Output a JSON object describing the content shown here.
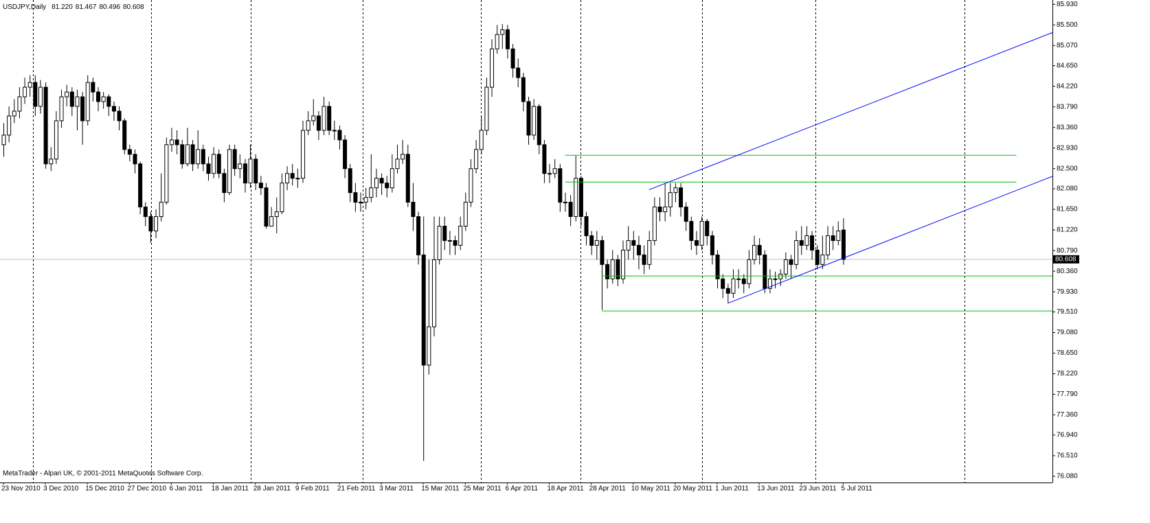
{
  "chart_data": {
    "type": "candlestick",
    "symbol": "USDJPY,Daily",
    "header_values": [
      "81.220",
      "81.467",
      "80.496",
      "80.608"
    ],
    "footer": "MetaTrader - Alpari UK, © 2001-2011 MetaQuotes Software Corp.",
    "up_color": "#ffffff",
    "down_color": "#000000",
    "ylim": [
      75.95,
      86.02
    ],
    "yticks": [
      {
        "value": 85.93,
        "label": "85.930"
      },
      {
        "value": 85.5,
        "label": "85.500"
      },
      {
        "value": 85.07,
        "label": "85.070"
      },
      {
        "value": 84.65,
        "label": "84.650"
      },
      {
        "value": 84.22,
        "label": "84.220"
      },
      {
        "value": 83.79,
        "label": "83.790"
      },
      {
        "value": 83.36,
        "label": "83.360"
      },
      {
        "value": 82.93,
        "label": "82.930"
      },
      {
        "value": 82.5,
        "label": "82.500"
      },
      {
        "value": 82.08,
        "label": "82.080"
      },
      {
        "value": 81.65,
        "label": "81.650"
      },
      {
        "value": 81.22,
        "label": "81.220"
      },
      {
        "value": 80.79,
        "label": "80.790"
      },
      {
        "value": 80.36,
        "label": "80.360"
      },
      {
        "value": 79.93,
        "label": "79.930"
      },
      {
        "value": 79.51,
        "label": "79.510"
      },
      {
        "value": 79.08,
        "label": "79.080"
      },
      {
        "value": 78.65,
        "label": "78.650"
      },
      {
        "value": 78.22,
        "label": "78.220"
      },
      {
        "value": 77.79,
        "label": "77.790"
      },
      {
        "value": 77.36,
        "label": "77.360"
      },
      {
        "value": 76.94,
        "label": "76.940"
      },
      {
        "value": 76.51,
        "label": "76.510"
      },
      {
        "value": 76.08,
        "label": "76.080"
      }
    ],
    "last_price": 80.608,
    "categories": [
      "23 Nov 2010",
      null,
      null,
      null,
      null,
      null,
      null,
      null,
      "3 Dec 2010",
      null,
      null,
      null,
      null,
      null,
      null,
      null,
      "15 Dec 2010",
      null,
      null,
      null,
      null,
      null,
      null,
      null,
      "27 Dec 2010",
      null,
      null,
      null,
      null,
      null,
      null,
      null,
      "6 Jan 2011",
      null,
      null,
      null,
      null,
      null,
      null,
      null,
      "18 Jan 2011",
      null,
      null,
      null,
      null,
      null,
      null,
      null,
      "28 Jan 2011",
      null,
      null,
      null,
      null,
      null,
      null,
      null,
      "9 Feb 2011",
      null,
      null,
      null,
      null,
      null,
      null,
      null,
      "21 Feb 2011",
      null,
      null,
      null,
      null,
      null,
      null,
      null,
      "3 Mar 2011",
      null,
      null,
      null,
      null,
      null,
      null,
      null,
      "15 Mar 2011",
      null,
      null,
      null,
      null,
      null,
      null,
      null,
      "25 Mar 2011",
      null,
      null,
      null,
      null,
      null,
      null,
      null,
      "6 Apr 2011",
      null,
      null,
      null,
      null,
      null,
      null,
      null,
      "18 Apr 2011",
      null,
      null,
      null,
      null,
      null,
      null,
      null,
      "28 Apr 2011",
      null,
      null,
      null,
      null,
      null,
      null,
      null,
      "10 May 2011",
      null,
      null,
      null,
      null,
      null,
      null,
      null,
      "20 May 2011",
      null,
      null,
      null,
      null,
      null,
      null,
      null,
      "1 Jun 2011",
      null,
      null,
      null,
      null,
      null,
      null,
      null,
      "13 Jun 2011",
      null,
      null,
      null,
      null,
      null,
      null,
      null,
      "23 Jun 2011",
      null,
      null,
      null,
      null,
      null,
      null,
      null,
      "5 Jul 2011"
    ],
    "candles": [
      [
        83.0,
        83.45,
        82.75,
        83.2
      ],
      [
        83.2,
        83.8,
        83.05,
        83.6
      ],
      [
        83.6,
        83.95,
        83.45,
        83.7
      ],
      [
        83.7,
        84.2,
        83.55,
        84.0
      ],
      [
        84.0,
        84.4,
        83.85,
        84.2
      ],
      [
        84.2,
        84.45,
        84.0,
        84.3
      ],
      [
        84.3,
        84.45,
        83.6,
        83.8
      ],
      [
        83.8,
        84.35,
        83.65,
        84.2
      ],
      [
        84.2,
        84.3,
        82.5,
        82.6
      ],
      [
        82.6,
        82.95,
        82.45,
        82.7
      ],
      [
        82.7,
        83.7,
        82.6,
        83.5
      ],
      [
        83.5,
        84.15,
        83.35,
        84.0
      ],
      [
        84.0,
        84.25,
        83.8,
        84.1
      ],
      [
        84.1,
        84.2,
        83.6,
        83.8
      ],
      [
        83.8,
        84.15,
        83.3,
        84.0
      ],
      [
        84.0,
        84.1,
        83.0,
        83.5
      ],
      [
        83.5,
        84.45,
        83.4,
        84.3
      ],
      [
        84.3,
        84.4,
        83.9,
        84.1
      ],
      [
        84.1,
        84.2,
        83.7,
        83.9
      ],
      [
        83.9,
        84.1,
        83.75,
        84.0
      ],
      [
        84.0,
        84.05,
        83.6,
        83.8
      ],
      [
        83.8,
        83.9,
        83.5,
        83.7
      ],
      [
        83.7,
        83.8,
        83.3,
        83.5
      ],
      [
        83.5,
        83.55,
        82.8,
        82.9
      ],
      [
        82.9,
        83.0,
        82.65,
        82.8
      ],
      [
        82.8,
        82.9,
        82.4,
        82.6
      ],
      [
        82.6,
        82.65,
        81.55,
        81.7
      ],
      [
        81.7,
        81.8,
        81.3,
        81.5
      ],
      [
        81.5,
        81.6,
        80.95,
        81.2
      ],
      [
        81.2,
        81.65,
        81.05,
        81.5
      ],
      [
        81.5,
        82.4,
        81.4,
        81.8
      ],
      [
        81.8,
        83.15,
        81.75,
        83.0
      ],
      [
        83.0,
        83.35,
        82.85,
        83.1
      ],
      [
        83.1,
        83.3,
        82.8,
        83.0
      ],
      [
        83.0,
        83.1,
        82.5,
        82.6
      ],
      [
        82.6,
        83.35,
        82.55,
        83.0
      ],
      [
        83.0,
        83.1,
        82.45,
        82.6
      ],
      [
        82.6,
        83.3,
        82.5,
        82.9
      ],
      [
        82.9,
        83.0,
        82.45,
        82.6
      ],
      [
        82.6,
        82.75,
        82.25,
        82.4
      ],
      [
        82.4,
        82.95,
        82.3,
        82.8
      ],
      [
        82.8,
        82.9,
        82.3,
        82.4
      ],
      [
        82.4,
        82.5,
        81.8,
        82.0
      ],
      [
        82.0,
        83.0,
        81.95,
        82.9
      ],
      [
        82.9,
        83.0,
        82.35,
        82.5
      ],
      [
        82.5,
        82.8,
        82.3,
        82.6
      ],
      [
        82.6,
        82.7,
        82.0,
        82.2
      ],
      [
        82.2,
        83.0,
        82.1,
        82.7
      ],
      [
        82.7,
        82.8,
        82.05,
        82.2
      ],
      [
        82.2,
        82.35,
        81.95,
        82.1
      ],
      [
        82.1,
        82.2,
        81.25,
        81.3
      ],
      [
        81.3,
        81.7,
        81.3,
        81.5
      ],
      [
        81.5,
        81.9,
        81.15,
        81.6
      ],
      [
        81.6,
        82.4,
        81.55,
        82.2
      ],
      [
        82.2,
        82.55,
        82.05,
        82.4
      ],
      [
        82.4,
        82.6,
        82.15,
        82.3
      ],
      [
        82.3,
        82.5,
        82.1,
        82.3
      ],
      [
        82.3,
        83.5,
        82.2,
        83.3
      ],
      [
        83.3,
        83.7,
        83.2,
        83.5
      ],
      [
        83.5,
        83.95,
        83.4,
        83.6
      ],
      [
        83.6,
        83.7,
        83.1,
        83.3
      ],
      [
        83.3,
        84.0,
        83.2,
        83.8
      ],
      [
        83.8,
        83.9,
        83.2,
        83.3
      ],
      [
        83.3,
        83.5,
        83.1,
        83.3
      ],
      [
        83.3,
        83.4,
        82.9,
        83.1
      ],
      [
        83.1,
        83.2,
        82.3,
        82.5
      ],
      [
        82.5,
        82.6,
        81.8,
        82.0
      ],
      [
        82.0,
        82.2,
        81.6,
        81.8
      ],
      [
        81.8,
        82.0,
        81.6,
        81.8
      ],
      [
        81.8,
        82.1,
        81.65,
        81.9
      ],
      [
        81.9,
        82.8,
        81.8,
        82.1
      ],
      [
        82.1,
        82.5,
        81.9,
        82.3
      ],
      [
        82.3,
        82.4,
        81.95,
        82.2
      ],
      [
        82.2,
        82.35,
        81.9,
        82.1
      ],
      [
        82.1,
        82.8,
        82.0,
        82.5
      ],
      [
        82.5,
        83.0,
        82.4,
        82.7
      ],
      [
        82.7,
        83.1,
        82.6,
        82.8
      ],
      [
        82.8,
        83.0,
        81.7,
        81.8
      ],
      [
        81.8,
        82.2,
        81.2,
        81.5
      ],
      [
        81.5,
        81.6,
        80.5,
        80.7
      ],
      [
        80.7,
        81.5,
        76.4,
        78.4
      ],
      [
        78.4,
        80.6,
        78.2,
        79.2
      ],
      [
        79.2,
        81.5,
        79.0,
        80.6
      ],
      [
        80.6,
        81.5,
        80.5,
        81.3
      ],
      [
        81.3,
        81.5,
        80.8,
        81.0
      ],
      [
        81.0,
        81.2,
        80.7,
        81.0
      ],
      [
        81.0,
        81.1,
        80.7,
        80.9
      ],
      [
        80.9,
        81.5,
        80.8,
        81.3
      ],
      [
        81.3,
        82.0,
        81.2,
        81.8
      ],
      [
        81.8,
        82.7,
        81.7,
        82.5
      ],
      [
        82.5,
        83.1,
        82.4,
        82.9
      ],
      [
        82.9,
        83.6,
        82.8,
        83.3
      ],
      [
        83.3,
        84.4,
        83.2,
        84.2
      ],
      [
        84.2,
        85.2,
        84.0,
        85.0
      ],
      [
        85.0,
        85.5,
        84.9,
        85.3
      ],
      [
        85.3,
        85.52,
        85.0,
        85.4
      ],
      [
        85.4,
        85.5,
        84.8,
        85.0
      ],
      [
        85.0,
        85.1,
        84.4,
        84.6
      ],
      [
        84.6,
        84.8,
        84.2,
        84.4
      ],
      [
        84.4,
        84.5,
        83.7,
        83.9
      ],
      [
        83.9,
        84.0,
        83.0,
        83.2
      ],
      [
        83.2,
        83.95,
        83.1,
        83.8
      ],
      [
        83.8,
        83.85,
        82.8,
        83.0
      ],
      [
        83.0,
        83.1,
        82.2,
        82.4
      ],
      [
        82.4,
        82.6,
        82.2,
        82.4
      ],
      [
        82.4,
        82.7,
        82.3,
        82.5
      ],
      [
        82.5,
        82.6,
        81.6,
        81.8
      ],
      [
        81.8,
        82.0,
        81.6,
        81.8
      ],
      [
        81.8,
        81.95,
        81.3,
        81.5
      ],
      [
        81.5,
        82.77,
        81.4,
        82.3
      ],
      [
        82.3,
        82.35,
        81.3,
        81.5
      ],
      [
        81.5,
        81.6,
        80.9,
        81.1
      ],
      [
        81.1,
        81.2,
        80.7,
        80.9
      ],
      [
        80.9,
        81.2,
        80.6,
        81.0
      ],
      [
        81.0,
        81.1,
        79.55,
        80.5
      ],
      [
        80.5,
        80.6,
        80.0,
        80.2
      ],
      [
        80.2,
        80.8,
        80.1,
        80.6
      ],
      [
        80.6,
        80.7,
        80.05,
        80.2
      ],
      [
        80.2,
        81.0,
        80.1,
        80.8
      ],
      [
        80.8,
        81.3,
        80.6,
        81.0
      ],
      [
        81.0,
        81.2,
        80.6,
        80.9
      ],
      [
        80.9,
        81.1,
        80.4,
        80.7
      ],
      [
        80.7,
        80.9,
        80.3,
        80.5
      ],
      [
        80.5,
        81.2,
        80.4,
        81.0
      ],
      [
        81.0,
        81.9,
        80.9,
        81.7
      ],
      [
        81.7,
        81.9,
        81.4,
        81.6
      ],
      [
        81.6,
        82.2,
        81.4,
        81.7
      ],
      [
        81.7,
        82.2,
        81.5,
        82.0
      ],
      [
        82.0,
        82.2,
        81.8,
        82.1
      ],
      [
        82.1,
        82.2,
        81.5,
        81.7
      ],
      [
        81.7,
        81.8,
        81.2,
        81.4
      ],
      [
        81.4,
        81.5,
        80.8,
        81.0
      ],
      [
        81.0,
        81.2,
        80.7,
        80.9
      ],
      [
        80.9,
        81.5,
        80.8,
        81.4
      ],
      [
        81.4,
        81.45,
        80.9,
        81.1
      ],
      [
        81.1,
        81.2,
        80.5,
        80.7
      ],
      [
        80.7,
        80.8,
        80.0,
        80.2
      ],
      [
        80.2,
        80.3,
        79.8,
        80.0
      ],
      [
        80.0,
        80.1,
        79.7,
        79.9
      ],
      [
        79.9,
        80.4,
        79.8,
        80.2
      ],
      [
        80.2,
        80.4,
        80.0,
        80.2
      ],
      [
        80.2,
        80.3,
        79.9,
        80.1
      ],
      [
        80.1,
        80.8,
        80.0,
        80.6
      ],
      [
        80.6,
        81.1,
        80.5,
        80.9
      ],
      [
        80.9,
        81.05,
        80.5,
        80.7
      ],
      [
        80.7,
        80.8,
        79.9,
        80.0
      ],
      [
        80.0,
        80.4,
        79.9,
        80.2
      ],
      [
        80.2,
        80.35,
        80.0,
        80.2
      ],
      [
        80.2,
        80.4,
        80.05,
        80.3
      ],
      [
        80.3,
        80.75,
        80.2,
        80.6
      ],
      [
        80.6,
        80.7,
        80.2,
        80.5
      ],
      [
        80.5,
        81.2,
        80.4,
        81.0
      ],
      [
        81.0,
        81.3,
        80.7,
        80.9
      ],
      [
        80.9,
        81.3,
        80.8,
        81.1
      ],
      [
        81.1,
        81.2,
        80.6,
        80.8
      ],
      [
        80.8,
        80.9,
        80.4,
        80.5
      ],
      [
        80.5,
        81.1,
        80.4,
        80.7
      ],
      [
        80.7,
        81.3,
        80.6,
        81.1
      ],
      [
        81.1,
        81.3,
        80.8,
        81.0
      ],
      [
        81.0,
        81.4,
        80.9,
        81.2
      ],
      [
        81.22,
        81.467,
        80.496,
        80.608
      ]
    ],
    "lines": [
      {
        "color": "#00c000",
        "x": [
          107,
          193
        ],
        "y": [
          82.78,
          82.78
        ]
      },
      {
        "color": "#00c000",
        "x": [
          107,
          193
        ],
        "y": [
          82.22,
          82.22
        ]
      },
      {
        "color": "#00c000",
        "x": [
          114,
          200
        ],
        "y": [
          80.26,
          80.26
        ]
      },
      {
        "color": "#00c000",
        "x": [
          114,
          200
        ],
        "y": [
          79.53,
          79.53
        ]
      },
      {
        "color": "#0000ff",
        "x": [
          123,
          200
        ],
        "y": [
          82.06,
          85.34
        ]
      },
      {
        "color": "#0000ff",
        "x": [
          138,
          200
        ],
        "y": [
          79.69,
          82.34
        ]
      }
    ]
  }
}
